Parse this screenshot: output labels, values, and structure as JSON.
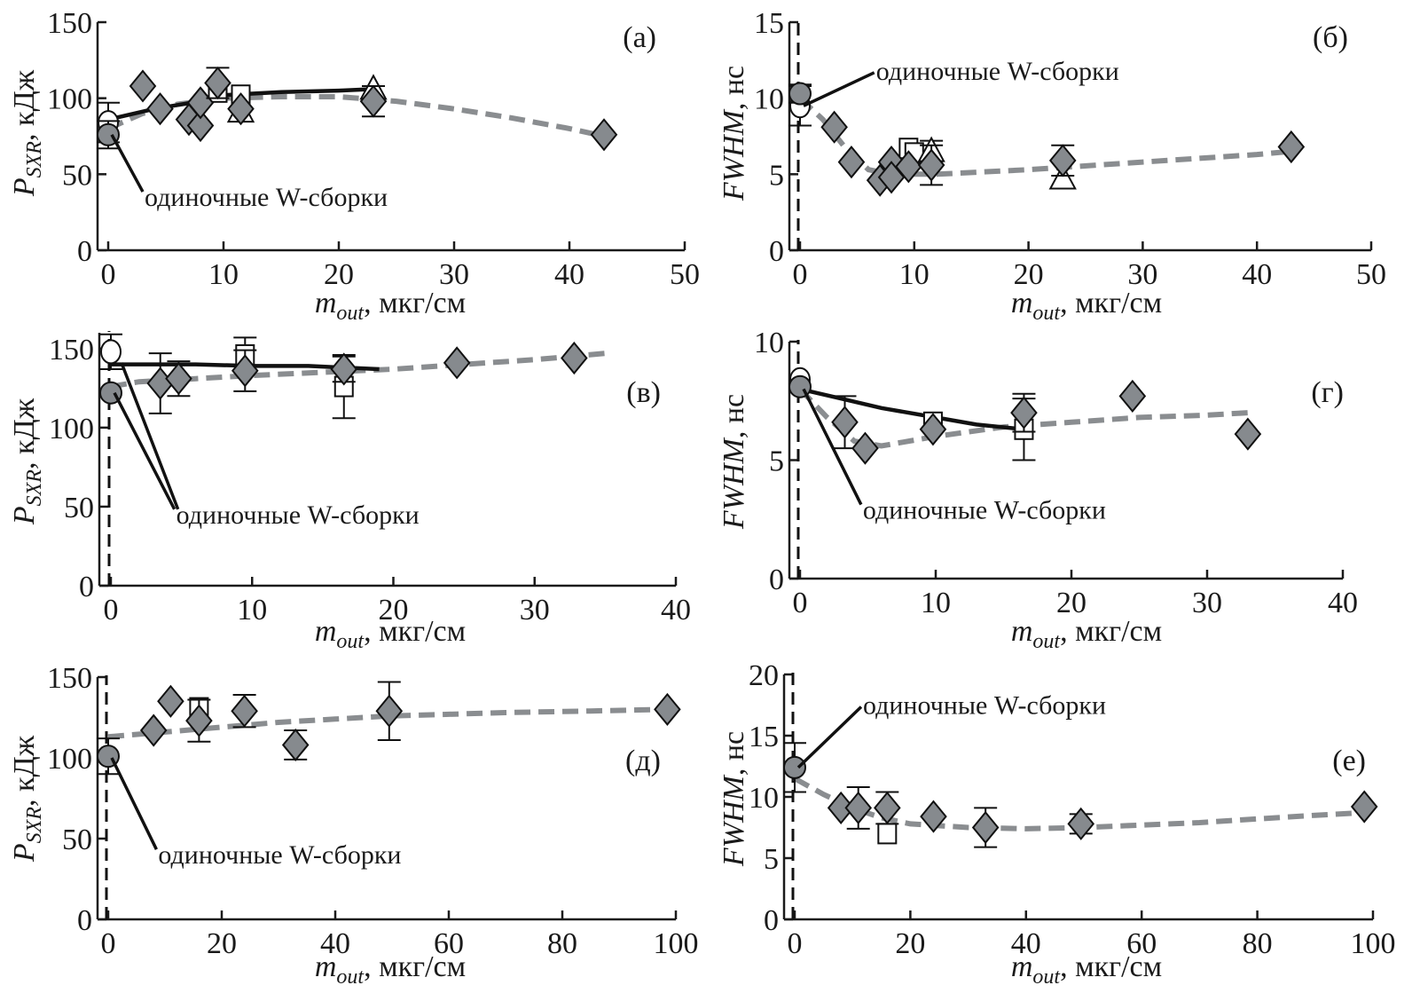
{
  "chart_data": [
    {
      "id": "a",
      "type": "scatter",
      "panel_label": "(а)",
      "ylabel_main": "P",
      "ylabel_sub": "SXR",
      "ylabel_unit": ", кДж",
      "xlabel_main": "m",
      "xlabel_sub": "out",
      "xlabel_unit": ", мкг/см",
      "xlim": [
        0,
        50
      ],
      "ylim": [
        0,
        150
      ],
      "xticks": [
        0,
        10,
        20,
        30,
        40,
        50
      ],
      "yticks": [
        0,
        50,
        100,
        150
      ],
      "annotation": "одиночные W-сборки",
      "annotation_target": [
        0,
        76
      ],
      "annotation_text_at": [
        3,
        35
      ],
      "vertical_dashed_line": false,
      "series": [
        {
          "name": "diamonds",
          "marker": "diamond",
          "points": [
            [
              3,
              108
            ],
            [
              4.5,
              93
            ],
            [
              7,
              86
            ],
            [
              8,
              82
            ],
            [
              8,
              97
            ],
            [
              9.5,
              110,
              10
            ],
            [
              11.5,
              93
            ],
            [
              23,
              98,
              10
            ],
            [
              43,
              76
            ]
          ]
        },
        {
          "name": "single-filled",
          "marker": "circle-filled",
          "points": [
            [
              0,
              76,
              9
            ]
          ]
        },
        {
          "name": "single-open",
          "marker": "circle-open",
          "points": [
            [
              0,
              84,
              13
            ]
          ]
        },
        {
          "name": "squares",
          "marker": "square",
          "points": [
            [
              9.5,
              104
            ],
            [
              11.5,
              102
            ]
          ]
        },
        {
          "name": "triangles",
          "marker": "triangle",
          "points": [
            [
              11.5,
              91
            ],
            [
              23,
              106
            ]
          ]
        },
        {
          "name": "fit-gray-dashed",
          "type": "line",
          "style": "gray-dashed",
          "points": [
            [
              0,
              80
            ],
            [
              3,
              90
            ],
            [
              6,
              96
            ],
            [
              10,
              100
            ],
            [
              15,
              101
            ],
            [
              20,
              101
            ],
            [
              25,
              98
            ],
            [
              30,
              93
            ],
            [
              35,
              87
            ],
            [
              40,
              80
            ],
            [
              43,
              75
            ]
          ]
        },
        {
          "name": "fit-black",
          "type": "line",
          "style": "black",
          "points": [
            [
              0,
              86
            ],
            [
              4,
              93
            ],
            [
              8,
              98
            ],
            [
              10,
              102
            ],
            [
              15,
              104
            ],
            [
              20,
              105
            ],
            [
              23,
              106
            ]
          ]
        }
      ]
    },
    {
      "id": "b",
      "type": "scatter",
      "panel_label": "(б)",
      "ylabel_main": "FWHM",
      "ylabel_sub": "",
      "ylabel_unit": ", нс",
      "xlabel_main": "m",
      "xlabel_sub": "out",
      "xlabel_unit": ", мкг/см",
      "xlim": [
        0,
        50
      ],
      "ylim": [
        0,
        15
      ],
      "xticks": [
        0,
        10,
        20,
        30,
        40,
        50
      ],
      "yticks": [
        0,
        5,
        10,
        15
      ],
      "annotation": "одиночные W-сборки",
      "annotation_target": [
        0,
        9.5
      ],
      "annotation_text_at": [
        6.5,
        11.8
      ],
      "vertical_dashed_line": true,
      "series": [
        {
          "name": "diamonds",
          "marker": "diamond",
          "points": [
            [
              3,
              8.1
            ],
            [
              4.5,
              5.8
            ],
            [
              7,
              4.6
            ],
            [
              8,
              5.8
            ],
            [
              8,
              4.8
            ],
            [
              9.5,
              5.5
            ],
            [
              11.5,
              5.6,
              1.3
            ],
            [
              23,
              5.9,
              1.0
            ],
            [
              43,
              6.8
            ]
          ]
        },
        {
          "name": "single-filled",
          "marker": "circle-filled",
          "points": [
            [
              0,
              10.3,
              0.6
            ]
          ]
        },
        {
          "name": "single-open",
          "marker": "circle-open",
          "points": [
            [
              0,
              9.5,
              1.3
            ]
          ]
        },
        {
          "name": "squares",
          "marker": "square",
          "points": [
            [
              9.5,
              6.7
            ],
            [
              10,
              6.4
            ]
          ]
        },
        {
          "name": "triangles",
          "marker": "triangle",
          "points": [
            [
              11.5,
              6.5,
              0.7
            ],
            [
              23,
              4.7
            ]
          ]
        },
        {
          "name": "fit-gray-dashed",
          "type": "line",
          "style": "gray-dashed",
          "points": [
            [
              0,
              10
            ],
            [
              2,
              8.6
            ],
            [
              4,
              6.7
            ],
            [
              6,
              5.3
            ],
            [
              8,
              5.0
            ],
            [
              12,
              5.0
            ],
            [
              20,
              5.3
            ],
            [
              30,
              5.8
            ],
            [
              40,
              6.3
            ],
            [
              43,
              6.5
            ]
          ]
        }
      ]
    },
    {
      "id": "c",
      "type": "scatter",
      "panel_label": "(в)",
      "ylabel_main": "P",
      "ylabel_sub": "SXR",
      "ylabel_unit": ", кДж",
      "xlabel_main": "m",
      "xlabel_sub": "out",
      "xlabel_unit": ", мкг/см",
      "xlim": [
        0,
        40
      ],
      "ylim": [
        0,
        160
      ],
      "xticks": [
        0,
        10,
        20,
        30,
        40
      ],
      "yticks": [
        0,
        50,
        100,
        150
      ],
      "annotation": "одиночные W-сборки",
      "annotation_target": [
        0,
        122
      ],
      "annotation_text_at": [
        4.5,
        45
      ],
      "annotation_target2": [
        0.5,
        141
      ],
      "vertical_dashed_line": true,
      "series": [
        {
          "name": "diamonds",
          "marker": "diamond",
          "points": [
            [
              3.5,
              128,
              19
            ],
            [
              4.8,
              131,
              11
            ],
            [
              9.5,
              136,
              13
            ],
            [
              16.5,
              137,
              8
            ],
            [
              24.5,
              141
            ],
            [
              32.8,
              144
            ]
          ]
        },
        {
          "name": "single-filled",
          "marker": "circle-filled",
          "points": [
            [
              0,
              122
            ]
          ]
        },
        {
          "name": "single-open",
          "marker": "circle-open",
          "points": [
            [
              0,
              148,
              11
            ]
          ]
        },
        {
          "name": "squares",
          "marker": "square",
          "points": [
            [
              9.5,
              146,
              11
            ],
            [
              16.5,
              126,
              20
            ]
          ]
        },
        {
          "name": "fit-gray-dashed",
          "type": "line",
          "style": "gray-dashed",
          "points": [
            [
              0,
              126
            ],
            [
              2,
              129
            ],
            [
              6,
              131
            ],
            [
              10,
              133
            ],
            [
              15,
              135
            ],
            [
              20,
              137
            ],
            [
              25,
              140
            ],
            [
              30,
              143
            ],
            [
              35,
              147
            ]
          ]
        },
        {
          "name": "fit-black",
          "type": "line",
          "style": "black",
          "points": [
            [
              0,
              140
            ],
            [
              6,
              140
            ],
            [
              10,
              139
            ],
            [
              14,
              139
            ],
            [
              19,
              137
            ]
          ]
        }
      ]
    },
    {
      "id": "d",
      "type": "scatter",
      "panel_label": "(г)",
      "ylabel_main": "FWHM",
      "ylabel_sub": "",
      "ylabel_unit": ", нс",
      "xlabel_main": "m",
      "xlabel_sub": "out",
      "xlabel_unit": ", мкг/см",
      "xlim": [
        0,
        40
      ],
      "ylim": [
        0,
        10
      ],
      "xticks": [
        0,
        10,
        20,
        30,
        40
      ],
      "yticks": [
        0,
        5,
        10
      ],
      "annotation": "одиночные W-сборки",
      "annotation_target": [
        0,
        8.0
      ],
      "annotation_text_at": [
        4.5,
        2.9
      ],
      "vertical_dashed_line": true,
      "series": [
        {
          "name": "diamonds",
          "marker": "diamond",
          "points": [
            [
              3.3,
              6.6,
              1.1
            ],
            [
              4.8,
              5.5
            ],
            [
              9.8,
              6.3
            ],
            [
              16.5,
              7.0,
              0.8
            ],
            [
              24.5,
              7.7
            ],
            [
              33,
              6.1
            ]
          ]
        },
        {
          "name": "single-filled",
          "marker": "circle-filled",
          "points": [
            [
              0,
              8.1
            ]
          ]
        },
        {
          "name": "single-open",
          "marker": "circle-open",
          "points": [
            [
              0,
              8.4
            ]
          ]
        },
        {
          "name": "squares",
          "marker": "square",
          "points": [
            [
              9.8,
              6.6
            ],
            [
              16.5,
              6.3,
              1.3
            ]
          ]
        },
        {
          "name": "fit-gray-dashed",
          "type": "line",
          "style": "gray-dashed",
          "points": [
            [
              0,
              8.0
            ],
            [
              2,
              6.8
            ],
            [
              4,
              5.8
            ],
            [
              6,
              5.6
            ],
            [
              10,
              6.0
            ],
            [
              15,
              6.4
            ],
            [
              20,
              6.6
            ],
            [
              25,
              6.8
            ],
            [
              30,
              6.9
            ],
            [
              33,
              7.0
            ]
          ]
        },
        {
          "name": "fit-black",
          "type": "line",
          "style": "black",
          "points": [
            [
              0,
              8.0
            ],
            [
              3,
              7.6
            ],
            [
              6,
              7.2
            ],
            [
              10,
              6.8
            ],
            [
              13,
              6.5
            ],
            [
              16.5,
              6.3
            ]
          ]
        }
      ]
    },
    {
      "id": "e",
      "type": "scatter",
      "panel_label": "(д)",
      "ylabel_main": "P",
      "ylabel_sub": "SXR",
      "ylabel_unit": ", кДж",
      "xlabel_main": "m",
      "xlabel_sub": "out",
      "xlabel_unit": ", мкг/см",
      "xlim": [
        0,
        100
      ],
      "ylim": [
        0,
        150
      ],
      "xticks": [
        0,
        20,
        40,
        60,
        80,
        100
      ],
      "yticks": [
        0,
        50,
        100,
        150
      ],
      "annotation": "одиночные W-сборки",
      "annotation_target": [
        0,
        100
      ],
      "annotation_text_at": [
        8.5,
        40
      ],
      "vertical_dashed_line": true,
      "series": [
        {
          "name": "diamonds",
          "marker": "diamond",
          "points": [
            [
              8,
              117
            ],
            [
              11,
              135
            ],
            [
              16,
              123,
              13
            ],
            [
              24,
              129,
              10
            ],
            [
              33,
              108,
              9
            ],
            [
              49.5,
              129,
              18
            ],
            [
              98.5,
              130
            ]
          ]
        },
        {
          "name": "single-filled",
          "marker": "circle-filled",
          "points": [
            [
              0,
              101,
              11
            ]
          ]
        },
        {
          "name": "squares",
          "marker": "square",
          "points": [
            [
              16,
              131
            ]
          ]
        },
        {
          "name": "fit-gray-dashed",
          "type": "line",
          "style": "gray-dashed",
          "points": [
            [
              0,
              113
            ],
            [
              10,
              116
            ],
            [
              20,
              119
            ],
            [
              30,
              122
            ],
            [
              40,
              124
            ],
            [
              50,
              126
            ],
            [
              60,
              127
            ],
            [
              70,
              128
            ],
            [
              85,
              129
            ],
            [
              98,
              130
            ]
          ]
        }
      ]
    },
    {
      "id": "f",
      "type": "scatter",
      "panel_label": "(е)",
      "ylabel_main": "FWHM",
      "ylabel_sub": "",
      "ylabel_unit": ", нс",
      "xlabel_main": "m",
      "xlabel_sub": "out",
      "xlabel_unit": ", мкг/см",
      "xlim": [
        0,
        100
      ],
      "ylim": [
        0,
        20
      ],
      "xticks": [
        0,
        20,
        40,
        60,
        80,
        100
      ],
      "yticks": [
        0,
        5,
        10,
        15,
        20
      ],
      "annotation": "одиночные W-сборки",
      "annotation_target": [
        0,
        12.4
      ],
      "annotation_text_at": [
        11.5,
        17.5
      ],
      "vertical_dashed_line": true,
      "series": [
        {
          "name": "diamonds",
          "marker": "diamond",
          "points": [
            [
              8,
              9.1
            ],
            [
              11,
              9.1,
              1.7
            ],
            [
              16,
              9.1,
              1.3
            ],
            [
              24,
              8.4
            ],
            [
              33,
              7.5,
              1.6
            ],
            [
              49.5,
              7.8,
              0.8
            ],
            [
              98.5,
              9.2
            ]
          ]
        },
        {
          "name": "single-filled",
          "marker": "circle-filled",
          "points": [
            [
              0,
              12.4,
              2.0
            ]
          ]
        },
        {
          "name": "squares",
          "marker": "square",
          "points": [
            [
              16,
              7.0
            ]
          ]
        },
        {
          "name": "fit-gray-dashed",
          "type": "line",
          "style": "gray-dashed",
          "points": [
            [
              0,
              11.5
            ],
            [
              5,
              10.2
            ],
            [
              10,
              9.1
            ],
            [
              15,
              8.3
            ],
            [
              20,
              7.8
            ],
            [
              30,
              7.5
            ],
            [
              40,
              7.4
            ],
            [
              50,
              7.5
            ],
            [
              60,
              7.7
            ],
            [
              70,
              7.9
            ],
            [
              80,
              8.2
            ],
            [
              90,
              8.5
            ],
            [
              98,
              8.7
            ]
          ]
        }
      ]
    }
  ]
}
